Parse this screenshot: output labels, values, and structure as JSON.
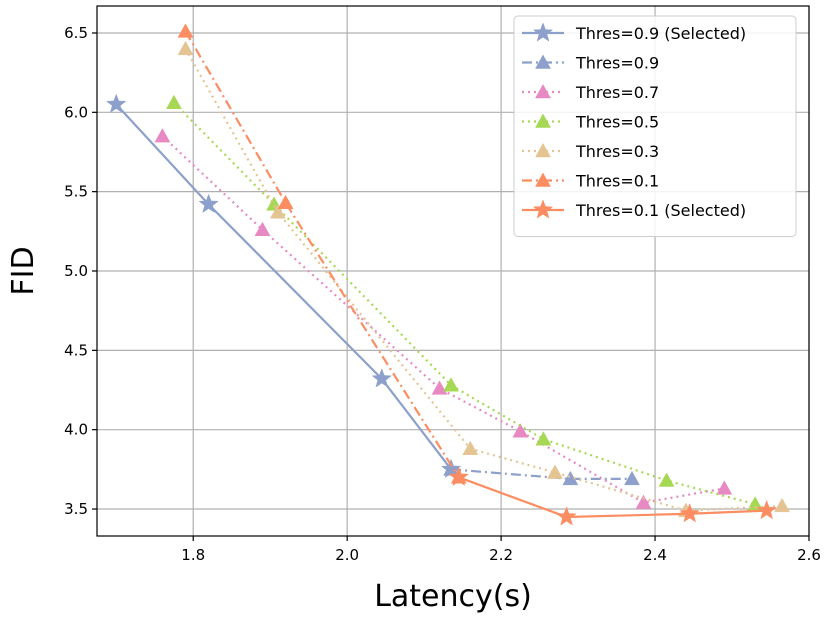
{
  "chart_data": {
    "type": "line",
    "xlabel": "Latency(s)",
    "ylabel": "FID",
    "xlim": [
      1.675,
      2.6
    ],
    "ylim": [
      3.33,
      6.67
    ],
    "xticks": [
      1.8,
      2.0,
      2.2,
      2.4,
      2.6
    ],
    "yticks": [
      3.5,
      4.0,
      4.5,
      5.0,
      5.5,
      6.0,
      6.5
    ],
    "xtick_labels": [
      "1.8",
      "2.0",
      "2.2",
      "2.4",
      "2.6"
    ],
    "ytick_labels": [
      "3.5",
      "4.0",
      "4.5",
      "5.0",
      "5.5",
      "6.0",
      "6.5"
    ],
    "grid": true,
    "legend_position": "top-right",
    "series": [
      {
        "name": "Thres=0.9 (Selected)",
        "color": "#8DA0CB",
        "dash": "solid",
        "marker": "star",
        "x": [
          1.7,
          1.82,
          2.045,
          2.135
        ],
        "y": [
          6.05,
          5.42,
          4.32,
          3.75
        ]
      },
      {
        "name": "Thres=0.9",
        "color": "#8DA0CB",
        "dash": "dashdot",
        "marker": "triangle",
        "x": [
          2.135,
          2.29,
          2.37
        ],
        "y": [
          3.75,
          3.69,
          3.69
        ]
      },
      {
        "name": "Thres=0.7",
        "color": "#E78AC3",
        "dash": "dotted",
        "marker": "triangle",
        "x": [
          1.76,
          1.89,
          2.12,
          2.225,
          2.385,
          2.49
        ],
        "y": [
          5.85,
          5.26,
          4.26,
          3.99,
          3.54,
          3.63
        ]
      },
      {
        "name": "Thres=0.5",
        "color": "#A6D854",
        "dash": "dotted",
        "marker": "triangle",
        "x": [
          1.775,
          1.905,
          2.135,
          2.255,
          2.415,
          2.53
        ],
        "y": [
          6.06,
          5.42,
          4.28,
          3.94,
          3.68,
          3.53
        ]
      },
      {
        "name": "Thres=0.3",
        "color": "#E5C494",
        "dash": "dotted",
        "marker": "triangle",
        "x": [
          1.79,
          1.91,
          2.16,
          2.27,
          2.44,
          2.565
        ],
        "y": [
          6.4,
          5.37,
          3.88,
          3.73,
          3.49,
          3.52
        ]
      },
      {
        "name": "Thres=0.1",
        "color": "#FC8D62",
        "dash": "dashdot",
        "marker": "triangle",
        "x": [
          1.79,
          1.92,
          2.145
        ],
        "y": [
          6.51,
          5.43,
          3.7
        ]
      },
      {
        "name": "Thres=0.1 (Selected)",
        "color": "#FC8D62",
        "dash": "solid",
        "marker": "star",
        "x": [
          2.145,
          2.285,
          2.445,
          2.545
        ],
        "y": [
          3.7,
          3.45,
          3.47,
          3.49
        ]
      }
    ]
  }
}
